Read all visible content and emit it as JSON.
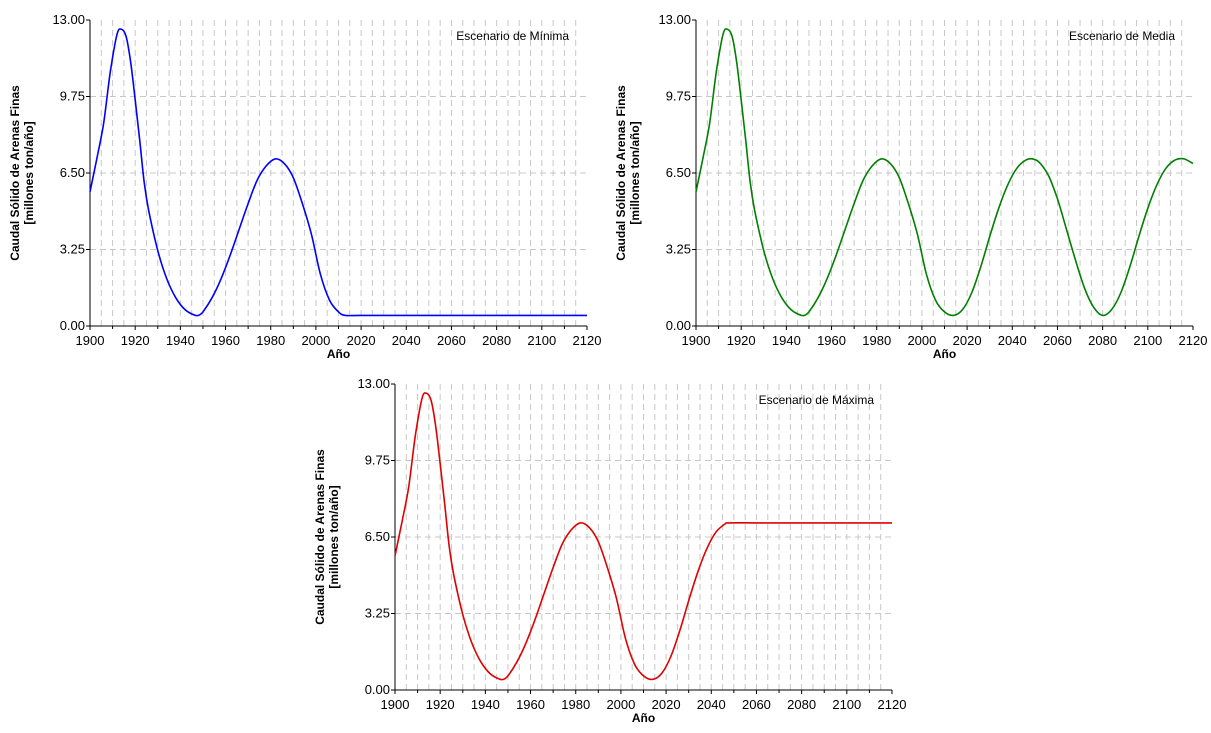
{
  "chart_data": [
    {
      "type": "line",
      "annotation": "Escenario de Mínima",
      "xlabel": "Año",
      "ylabel": "Caudal Sólido de Arenas Finas",
      "ylabel_unit": "[millones ton/año]",
      "xlim": [
        1900,
        2120
      ],
      "ylim": [
        0,
        13
      ],
      "xticks": [
        "1900",
        "1920",
        "1940",
        "1960",
        "1980",
        "2000",
        "2020",
        "2040",
        "2060",
        "2080",
        "2100",
        "2120"
      ],
      "yticks": [
        "0.00",
        "3.25",
        "6.50",
        "9.75",
        "13.00"
      ],
      "grid": true,
      "color": "#0000ff",
      "series": [
        {
          "x": [
            1900,
            1903,
            1906,
            1909,
            1912,
            1914,
            1916,
            1918,
            1920,
            1922,
            1924,
            1926,
            1930,
            1934,
            1938,
            1942,
            1946,
            1948,
            1950,
            1954,
            1958,
            1962,
            1966,
            1970,
            1974,
            1978,
            1982,
            1986,
            1990,
            1994,
            1998,
            2002,
            2006,
            2010,
            2013,
            2020,
            2040,
            2060,
            2080,
            2100,
            2120
          ],
          "y": [
            5.7,
            7.1,
            8.6,
            10.8,
            12.4,
            12.6,
            12.3,
            11.2,
            9.6,
            7.9,
            6.1,
            4.9,
            3.2,
            2.0,
            1.2,
            0.7,
            0.47,
            0.45,
            0.6,
            1.2,
            2.0,
            3.0,
            4.1,
            5.2,
            6.2,
            6.8,
            7.1,
            6.9,
            6.3,
            5.2,
            3.9,
            2.2,
            1.1,
            0.6,
            0.45,
            0.45,
            0.45,
            0.45,
            0.45,
            0.45,
            0.45
          ]
        }
      ]
    },
    {
      "type": "line",
      "annotation": "Escenario de Media",
      "xlabel": "Año",
      "ylabel": "Caudal Sólido de Arenas Finas",
      "ylabel_unit": "[millones ton/año]",
      "xlim": [
        1900,
        2120
      ],
      "ylim": [
        0,
        13
      ],
      "xticks": [
        "1900",
        "1920",
        "1940",
        "1960",
        "1980",
        "2000",
        "2020",
        "2040",
        "2060",
        "2080",
        "2100",
        "2120"
      ],
      "yticks": [
        "0.00",
        "3.25",
        "6.50",
        "9.75",
        "13.00"
      ],
      "grid": true,
      "color": "#008000",
      "series": [
        {
          "x": [
            1900,
            1903,
            1906,
            1909,
            1912,
            1914,
            1916,
            1918,
            1920,
            1922,
            1924,
            1926,
            1930,
            1934,
            1938,
            1942,
            1946,
            1948,
            1950,
            1954,
            1958,
            1962,
            1966,
            1970,
            1974,
            1978,
            1982,
            1986,
            1990,
            1994,
            1998,
            2002,
            2006,
            2010,
            2014,
            2018,
            2022,
            2026,
            2030,
            2034,
            2038,
            2042,
            2046,
            2049,
            2052,
            2056,
            2060,
            2064,
            2068,
            2072,
            2076,
            2080,
            2084,
            2088,
            2092,
            2096,
            2100,
            2104,
            2108,
            2112,
            2116,
            2120
          ],
          "y": [
            5.7,
            7.1,
            8.6,
            10.8,
            12.4,
            12.6,
            12.3,
            11.2,
            9.6,
            7.9,
            6.1,
            4.9,
            3.2,
            2.0,
            1.2,
            0.7,
            0.47,
            0.45,
            0.6,
            1.2,
            2.0,
            3.0,
            4.1,
            5.2,
            6.2,
            6.8,
            7.1,
            6.9,
            6.3,
            5.2,
            3.9,
            2.2,
            1.1,
            0.6,
            0.45,
            0.7,
            1.4,
            2.5,
            3.8,
            5.0,
            6.0,
            6.7,
            7.05,
            7.1,
            6.95,
            6.4,
            5.4,
            4.1,
            2.8,
            1.6,
            0.8,
            0.45,
            0.7,
            1.4,
            2.5,
            3.8,
            5.0,
            6.0,
            6.7,
            7.05,
            7.1,
            6.9
          ]
        }
      ]
    },
    {
      "type": "line",
      "annotation": "Escenario de Máxima",
      "xlabel": "Año",
      "ylabel": "Caudal Sólido de Arenas Finas",
      "ylabel_unit": "[millones ton/año]",
      "xlim": [
        1900,
        2120
      ],
      "ylim": [
        0,
        13
      ],
      "xticks": [
        "1900",
        "1920",
        "1940",
        "1960",
        "1980",
        "2000",
        "2020",
        "2040",
        "2060",
        "2080",
        "2100",
        "2120"
      ],
      "yticks": [
        "0.00",
        "3.25",
        "6.50",
        "9.75",
        "13.00"
      ],
      "grid": true,
      "color": "#e00000",
      "series": [
        {
          "x": [
            1900,
            1903,
            1906,
            1909,
            1912,
            1914,
            1916,
            1918,
            1920,
            1922,
            1924,
            1926,
            1930,
            1934,
            1938,
            1942,
            1946,
            1948,
            1950,
            1954,
            1958,
            1962,
            1966,
            1970,
            1974,
            1978,
            1982,
            1986,
            1990,
            1994,
            1998,
            2002,
            2006,
            2010,
            2014,
            2018,
            2022,
            2026,
            2030,
            2034,
            2038,
            2042,
            2046,
            2048,
            2060,
            2080,
            2100,
            2120
          ],
          "y": [
            5.7,
            7.1,
            8.6,
            10.8,
            12.4,
            12.6,
            12.3,
            11.2,
            9.6,
            7.9,
            6.1,
            4.9,
            3.2,
            2.0,
            1.2,
            0.7,
            0.47,
            0.45,
            0.6,
            1.2,
            2.0,
            3.0,
            4.1,
            5.2,
            6.2,
            6.8,
            7.1,
            6.9,
            6.3,
            5.2,
            3.9,
            2.2,
            1.1,
            0.6,
            0.45,
            0.7,
            1.4,
            2.5,
            3.8,
            5.0,
            6.0,
            6.7,
            7.05,
            7.1,
            7.1,
            7.1,
            7.1,
            7.1
          ]
        }
      ]
    }
  ]
}
